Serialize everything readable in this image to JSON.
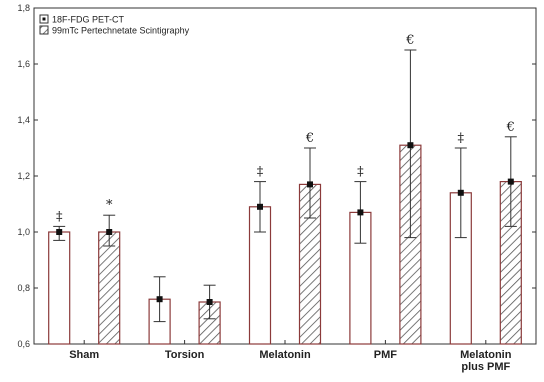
{
  "chart_data": {
    "type": "bar",
    "categories": [
      "Sham",
      "Torsion",
      "Melatonin",
      "PMF",
      "Melatonin plus PMF"
    ],
    "category_lines": [
      [
        "Sham"
      ],
      [
        "Torsion"
      ],
      [
        "Melatonin"
      ],
      [
        "PMF"
      ],
      [
        "Melatonin",
        "plus PMF"
      ]
    ],
    "ylim": [
      0.6,
      1.8
    ],
    "yticks": [
      0.6,
      0.8,
      1.0,
      1.2,
      1.4,
      1.6,
      1.8
    ],
    "ytick_labels": [
      "0,6",
      "0,8",
      "1,0",
      "1,2",
      "1,4",
      "1,6",
      "1,8"
    ],
    "legend_position": "top-left",
    "series": [
      {
        "name": "18F-FDG PET-CT",
        "pattern": "white",
        "values": [
          1.0,
          0.76,
          1.09,
          1.07,
          1.14
        ],
        "err_low": [
          0.97,
          0.68,
          1.0,
          0.96,
          0.98
        ],
        "err_high": [
          1.02,
          0.84,
          1.18,
          1.18,
          1.3
        ],
        "annotations": [
          "‡",
          "",
          "‡",
          "‡",
          "‡"
        ]
      },
      {
        "name": "99mTc Pertechnetate Scintigraphy",
        "pattern": "hatched",
        "values": [
          1.0,
          0.75,
          1.17,
          1.31,
          1.18
        ],
        "err_low": [
          0.95,
          0.69,
          1.05,
          0.98,
          1.02
        ],
        "err_high": [
          1.06,
          0.81,
          1.3,
          1.65,
          1.34
        ],
        "annotations": [
          "*",
          "",
          "€",
          "€",
          "€"
        ]
      }
    ],
    "colors": {
      "bar_stroke": "#8b3a3a",
      "axis": "#333333",
      "hatch": "#555555",
      "point": "#111111"
    }
  }
}
